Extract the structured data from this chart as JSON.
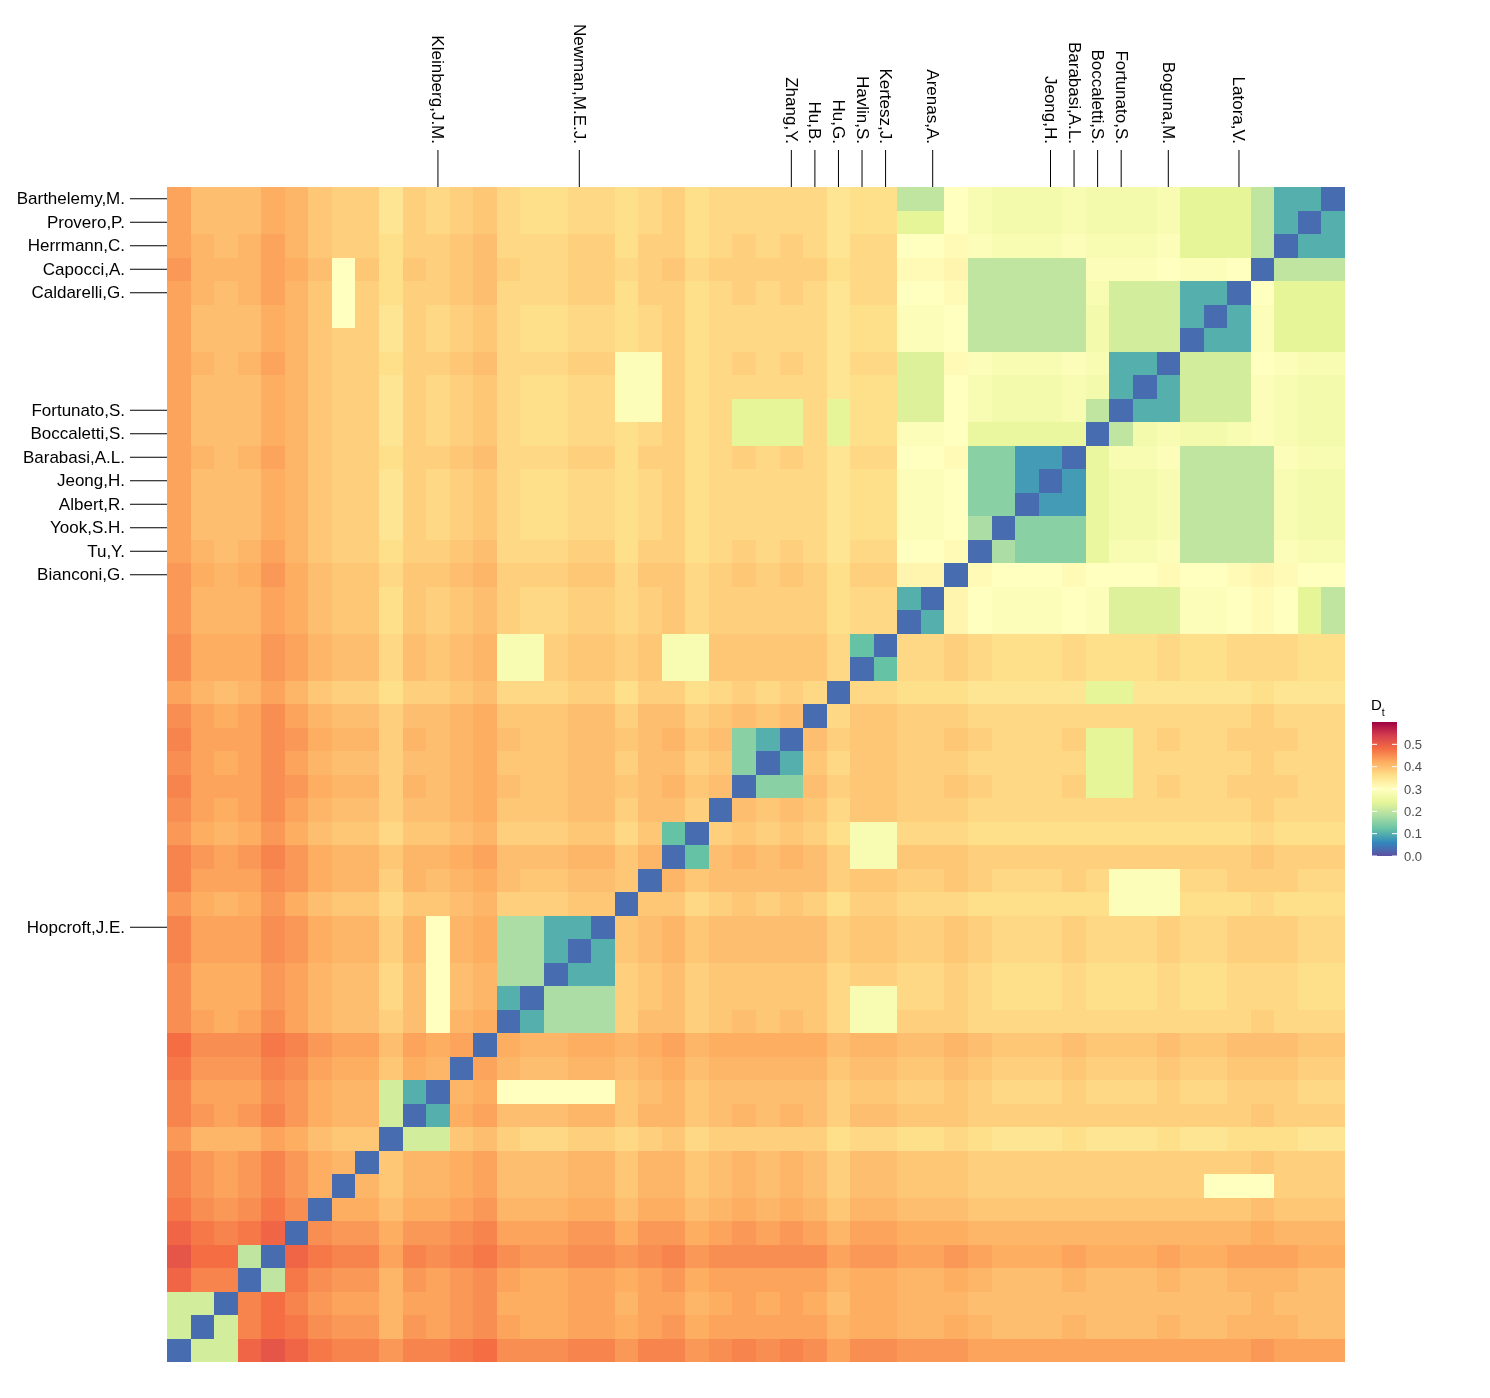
{
  "chart_data": {
    "type": "heatmap",
    "clabel": "D$_{t}$",
    "clim": [
      0,
      0.6
    ],
    "cticks": [
      {
        "value": 0,
        "label": "0.0"
      },
      0.1,
      0.2,
      0.3,
      0.4,
      0.5
    ],
    "categories": [
      null,
      null,
      null,
      null,
      null,
      null,
      null,
      null,
      null,
      null,
      null,
      "Kleinberg,J.M.",
      null,
      null,
      null,
      null,
      null,
      "Newman,M.E.J.",
      null,
      null,
      null,
      null,
      null,
      null,
      null,
      null,
      "Zhang,Y.",
      "Hu,B.",
      "Hu,G.",
      "Havlin,S.",
      "Kertesz,J.",
      null,
      "Arenas,A.",
      null,
      null,
      null,
      null,
      "Jeong,H.",
      "Barabasi,A.L.",
      "Boccaletti,S.",
      "Fortunato,S.",
      null,
      "Boguna,M.",
      null,
      null,
      "Latora,V.",
      null,
      null,
      null,
      null
    ],
    "y_categories": [
      "Barthelemy,M.",
      "Provero,P.",
      "Herrmann,C.",
      "Capocci,A.",
      "Caldarelli,G.",
      null,
      null,
      null,
      null,
      "Fortunato,S.",
      "Boccaletti,S.",
      "Barabasi,A.L.",
      "Jeong,H.",
      "Albert,R.",
      "Yook,S.H.",
      "Tu,Y.",
      "Bianconi,G.",
      null,
      null,
      null,
      null,
      null,
      null,
      null,
      null,
      null,
      null,
      null,
      null,
      null,
      null,
      "Hopcroft,J.E.",
      null,
      null,
      null,
      null,
      null,
      null,
      null,
      null,
      null,
      null,
      null,
      null,
      null,
      null,
      null,
      null,
      null,
      null
    ],
    "cells": [
      [
        0.43,
        0.4,
        0.4,
        0.4,
        0.42,
        0.41,
        0.39,
        0.38,
        0.38,
        0.35,
        0.38,
        0.37,
        0.38,
        0.39,
        0.37,
        0.36,
        0.36,
        0.37,
        0.37,
        0.36,
        0.37,
        0.38,
        0.36,
        0.37,
        0.37,
        0.37,
        0.37,
        0.37,
        0.35,
        0.36,
        0.36,
        0.2,
        0.2,
        0.3,
        0.28,
        0.27,
        0.27,
        0.27,
        0.28,
        0.27,
        0.27,
        0.27,
        0.28,
        0.24,
        0.24,
        0.24,
        0.2,
        0.1,
        0.1,
        0.03
      ],
      [
        0.43,
        0.4,
        0.4,
        0.4,
        0.42,
        0.41,
        0.39,
        0.38,
        0.38,
        0.35,
        0.38,
        0.37,
        0.38,
        0.39,
        0.37,
        0.36,
        0.36,
        0.37,
        0.37,
        0.36,
        0.37,
        0.38,
        0.36,
        0.37,
        0.37,
        0.37,
        0.37,
        0.37,
        0.35,
        0.36,
        0.36,
        0.24,
        0.24,
        0.3,
        0.28,
        0.27,
        0.27,
        0.27,
        0.28,
        0.27,
        0.27,
        0.27,
        0.28,
        0.24,
        0.24,
        0.24,
        0.2,
        0.1,
        0.03,
        0.1
      ],
      [
        0.43,
        0.41,
        0.4,
        0.41,
        0.43,
        0.41,
        0.39,
        0.38,
        0.38,
        0.36,
        0.38,
        0.38,
        0.39,
        0.4,
        0.37,
        0.37,
        0.37,
        0.38,
        0.38,
        0.36,
        0.38,
        0.38,
        0.36,
        0.37,
        0.38,
        0.37,
        0.38,
        0.37,
        0.35,
        0.37,
        0.37,
        0.3,
        0.3,
        0.31,
        0.29,
        0.28,
        0.28,
        0.28,
        0.29,
        0.28,
        0.28,
        0.28,
        0.29,
        0.24,
        0.24,
        0.24,
        0.2,
        0.03,
        0.1,
        0.1
      ],
      [
        0.44,
        0.41,
        0.41,
        0.41,
        0.43,
        0.42,
        0.4,
        0.3,
        0.39,
        0.36,
        0.39,
        0.38,
        0.39,
        0.4,
        0.38,
        0.37,
        0.37,
        0.38,
        0.38,
        0.37,
        0.38,
        0.39,
        0.37,
        0.38,
        0.38,
        0.38,
        0.38,
        0.38,
        0.36,
        0.37,
        0.37,
        0.31,
        0.31,
        0.32,
        0.2,
        0.2,
        0.2,
        0.2,
        0.2,
        0.29,
        0.29,
        0.29,
        0.3,
        0.29,
        0.29,
        0.3,
        0.03,
        0.2,
        0.2,
        0.2
      ],
      [
        0.43,
        0.41,
        0.4,
        0.41,
        0.43,
        0.41,
        0.39,
        0.3,
        0.38,
        0.36,
        0.38,
        0.38,
        0.39,
        0.4,
        0.37,
        0.37,
        0.37,
        0.38,
        0.38,
        0.36,
        0.38,
        0.38,
        0.36,
        0.37,
        0.38,
        0.37,
        0.38,
        0.37,
        0.35,
        0.37,
        0.37,
        0.3,
        0.3,
        0.31,
        0.2,
        0.2,
        0.2,
        0.2,
        0.2,
        0.28,
        0.22,
        0.22,
        0.22,
        0.1,
        0.1,
        0.03,
        0.3,
        0.24,
        0.24,
        0.24
      ],
      [
        0.43,
        0.4,
        0.4,
        0.4,
        0.42,
        0.41,
        0.39,
        0.3,
        0.38,
        0.35,
        0.38,
        0.37,
        0.38,
        0.39,
        0.37,
        0.36,
        0.36,
        0.37,
        0.37,
        0.36,
        0.37,
        0.38,
        0.36,
        0.37,
        0.37,
        0.37,
        0.37,
        0.37,
        0.35,
        0.36,
        0.36,
        0.29,
        0.29,
        0.3,
        0.2,
        0.2,
        0.2,
        0.2,
        0.2,
        0.27,
        0.22,
        0.22,
        0.22,
        0.1,
        0.03,
        0.1,
        0.29,
        0.24,
        0.24,
        0.24
      ],
      [
        0.43,
        0.4,
        0.4,
        0.4,
        0.42,
        0.41,
        0.39,
        0.38,
        0.38,
        0.35,
        0.38,
        0.37,
        0.38,
        0.39,
        0.37,
        0.36,
        0.36,
        0.37,
        0.37,
        0.36,
        0.37,
        0.38,
        0.36,
        0.37,
        0.37,
        0.37,
        0.37,
        0.37,
        0.35,
        0.36,
        0.36,
        0.29,
        0.29,
        0.3,
        0.2,
        0.2,
        0.2,
        0.2,
        0.2,
        0.27,
        0.22,
        0.22,
        0.22,
        0.03,
        0.1,
        0.1,
        0.29,
        0.24,
        0.24,
        0.24
      ],
      [
        0.43,
        0.41,
        0.4,
        0.41,
        0.43,
        0.41,
        0.39,
        0.38,
        0.38,
        0.36,
        0.38,
        0.38,
        0.39,
        0.4,
        0.37,
        0.37,
        0.37,
        0.38,
        0.38,
        0.29,
        0.29,
        0.38,
        0.36,
        0.37,
        0.38,
        0.37,
        0.38,
        0.37,
        0.35,
        0.37,
        0.37,
        0.23,
        0.23,
        0.31,
        0.29,
        0.28,
        0.28,
        0.28,
        0.29,
        0.28,
        0.1,
        0.1,
        0.03,
        0.22,
        0.22,
        0.22,
        0.3,
        0.29,
        0.28,
        0.28
      ],
      [
        0.43,
        0.4,
        0.4,
        0.4,
        0.42,
        0.41,
        0.39,
        0.38,
        0.38,
        0.35,
        0.38,
        0.37,
        0.38,
        0.39,
        0.37,
        0.36,
        0.36,
        0.37,
        0.37,
        0.29,
        0.29,
        0.38,
        0.36,
        0.37,
        0.37,
        0.37,
        0.37,
        0.37,
        0.35,
        0.36,
        0.36,
        0.23,
        0.23,
        0.3,
        0.28,
        0.27,
        0.27,
        0.27,
        0.28,
        0.27,
        0.1,
        0.03,
        0.1,
        0.22,
        0.22,
        0.22,
        0.29,
        0.28,
        0.27,
        0.27
      ],
      [
        0.43,
        0.4,
        0.4,
        0.4,
        0.42,
        0.41,
        0.39,
        0.38,
        0.38,
        0.35,
        0.38,
        0.37,
        0.38,
        0.39,
        0.37,
        0.36,
        0.36,
        0.37,
        0.37,
        0.29,
        0.29,
        0.38,
        0.36,
        0.37,
        0.24,
        0.24,
        0.24,
        0.37,
        0.24,
        0.36,
        0.36,
        0.23,
        0.23,
        0.3,
        0.28,
        0.27,
        0.27,
        0.27,
        0.28,
        0.2,
        0.03,
        0.1,
        0.1,
        0.22,
        0.22,
        0.22,
        0.29,
        0.28,
        0.27,
        0.27
      ],
      [
        0.43,
        0.4,
        0.4,
        0.4,
        0.42,
        0.41,
        0.39,
        0.38,
        0.38,
        0.35,
        0.38,
        0.37,
        0.38,
        0.39,
        0.37,
        0.36,
        0.36,
        0.37,
        0.37,
        0.36,
        0.37,
        0.38,
        0.36,
        0.37,
        0.24,
        0.24,
        0.24,
        0.37,
        0.24,
        0.36,
        0.36,
        0.29,
        0.29,
        0.3,
        0.25,
        0.25,
        0.25,
        0.25,
        0.25,
        0.03,
        0.2,
        0.27,
        0.28,
        0.27,
        0.27,
        0.28,
        0.29,
        0.28,
        0.27,
        0.27
      ],
      [
        0.43,
        0.41,
        0.4,
        0.41,
        0.43,
        0.41,
        0.39,
        0.38,
        0.38,
        0.36,
        0.38,
        0.38,
        0.39,
        0.4,
        0.37,
        0.37,
        0.37,
        0.38,
        0.38,
        0.36,
        0.38,
        0.38,
        0.36,
        0.37,
        0.38,
        0.37,
        0.38,
        0.37,
        0.35,
        0.37,
        0.37,
        0.3,
        0.3,
        0.31,
        0.15,
        0.15,
        0.08,
        0.08,
        0.03,
        0.25,
        0.28,
        0.28,
        0.29,
        0.2,
        0.2,
        0.2,
        0.2,
        0.29,
        0.28,
        0.28
      ],
      [
        0.43,
        0.4,
        0.4,
        0.4,
        0.42,
        0.41,
        0.39,
        0.38,
        0.38,
        0.35,
        0.38,
        0.37,
        0.38,
        0.39,
        0.37,
        0.36,
        0.36,
        0.37,
        0.37,
        0.36,
        0.37,
        0.38,
        0.36,
        0.37,
        0.37,
        0.37,
        0.37,
        0.37,
        0.35,
        0.36,
        0.36,
        0.29,
        0.29,
        0.3,
        0.15,
        0.15,
        0.08,
        0.03,
        0.08,
        0.25,
        0.27,
        0.27,
        0.28,
        0.2,
        0.2,
        0.2,
        0.2,
        0.28,
        0.27,
        0.27
      ],
      [
        0.43,
        0.4,
        0.4,
        0.4,
        0.42,
        0.41,
        0.39,
        0.38,
        0.38,
        0.35,
        0.38,
        0.37,
        0.38,
        0.39,
        0.37,
        0.36,
        0.36,
        0.37,
        0.37,
        0.36,
        0.37,
        0.38,
        0.36,
        0.37,
        0.37,
        0.37,
        0.37,
        0.37,
        0.35,
        0.36,
        0.36,
        0.29,
        0.29,
        0.3,
        0.15,
        0.15,
        0.03,
        0.08,
        0.08,
        0.25,
        0.27,
        0.27,
        0.28,
        0.2,
        0.2,
        0.2,
        0.2,
        0.28,
        0.27,
        0.27
      ],
      [
        0.43,
        0.4,
        0.4,
        0.4,
        0.42,
        0.41,
        0.39,
        0.38,
        0.38,
        0.35,
        0.38,
        0.37,
        0.38,
        0.39,
        0.37,
        0.36,
        0.36,
        0.37,
        0.37,
        0.36,
        0.37,
        0.38,
        0.36,
        0.37,
        0.37,
        0.37,
        0.37,
        0.37,
        0.35,
        0.36,
        0.36,
        0.29,
        0.29,
        0.3,
        0.18,
        0.03,
        0.15,
        0.15,
        0.15,
        0.25,
        0.27,
        0.27,
        0.28,
        0.2,
        0.2,
        0.2,
        0.2,
        0.28,
        0.27,
        0.27
      ],
      [
        0.43,
        0.41,
        0.4,
        0.41,
        0.43,
        0.41,
        0.39,
        0.38,
        0.38,
        0.36,
        0.38,
        0.38,
        0.39,
        0.4,
        0.37,
        0.37,
        0.37,
        0.38,
        0.38,
        0.36,
        0.38,
        0.38,
        0.36,
        0.37,
        0.38,
        0.37,
        0.38,
        0.37,
        0.35,
        0.37,
        0.37,
        0.3,
        0.3,
        0.31,
        0.03,
        0.18,
        0.15,
        0.15,
        0.15,
        0.25,
        0.28,
        0.28,
        0.29,
        0.2,
        0.2,
        0.2,
        0.2,
        0.29,
        0.28,
        0.28
      ],
      [
        0.44,
        0.42,
        0.41,
        0.42,
        0.44,
        0.42,
        0.4,
        0.39,
        0.39,
        0.37,
        0.39,
        0.39,
        0.4,
        0.41,
        0.38,
        0.38,
        0.38,
        0.39,
        0.39,
        0.37,
        0.39,
        0.39,
        0.37,
        0.38,
        0.39,
        0.38,
        0.39,
        0.38,
        0.36,
        0.38,
        0.38,
        0.32,
        0.32,
        0.03,
        0.31,
        0.3,
        0.3,
        0.3,
        0.31,
        0.3,
        0.3,
        0.3,
        0.31,
        0.3,
        0.3,
        0.31,
        0.32,
        0.31,
        0.3,
        0.3
      ],
      [
        0.44,
        0.41,
        0.41,
        0.41,
        0.43,
        0.42,
        0.4,
        0.39,
        0.39,
        0.36,
        0.39,
        0.38,
        0.39,
        0.4,
        0.38,
        0.37,
        0.37,
        0.38,
        0.38,
        0.37,
        0.38,
        0.39,
        0.37,
        0.38,
        0.38,
        0.38,
        0.38,
        0.38,
        0.36,
        0.37,
        0.37,
        0.1,
        0.03,
        0.32,
        0.3,
        0.29,
        0.29,
        0.29,
        0.3,
        0.29,
        0.23,
        0.23,
        0.23,
        0.29,
        0.29,
        0.3,
        0.31,
        0.3,
        0.24,
        0.2
      ],
      [
        0.44,
        0.41,
        0.41,
        0.41,
        0.43,
        0.42,
        0.4,
        0.39,
        0.39,
        0.36,
        0.39,
        0.38,
        0.39,
        0.4,
        0.38,
        0.37,
        0.37,
        0.38,
        0.38,
        0.37,
        0.38,
        0.39,
        0.37,
        0.38,
        0.38,
        0.38,
        0.38,
        0.38,
        0.36,
        0.37,
        0.37,
        0.03,
        0.1,
        0.32,
        0.3,
        0.29,
        0.29,
        0.29,
        0.3,
        0.29,
        0.23,
        0.23,
        0.23,
        0.29,
        0.29,
        0.3,
        0.31,
        0.3,
        0.24,
        0.2
      ],
      [
        0.45,
        0.42,
        0.42,
        0.42,
        0.44,
        0.43,
        0.41,
        0.4,
        0.4,
        0.37,
        0.4,
        0.39,
        0.4,
        0.41,
        0.28,
        0.28,
        0.38,
        0.39,
        0.39,
        0.38,
        0.39,
        0.28,
        0.28,
        0.39,
        0.39,
        0.39,
        0.39,
        0.39,
        0.37,
        0.12,
        0.03,
        0.37,
        0.37,
        0.38,
        0.37,
        0.36,
        0.36,
        0.36,
        0.37,
        0.36,
        0.36,
        0.36,
        0.37,
        0.36,
        0.36,
        0.37,
        0.37,
        0.37,
        0.36,
        0.36
      ],
      [
        0.45,
        0.42,
        0.42,
        0.42,
        0.44,
        0.43,
        0.41,
        0.4,
        0.4,
        0.37,
        0.4,
        0.39,
        0.4,
        0.41,
        0.28,
        0.28,
        0.38,
        0.39,
        0.39,
        0.38,
        0.39,
        0.28,
        0.28,
        0.39,
        0.39,
        0.39,
        0.39,
        0.39,
        0.37,
        0.03,
        0.12,
        0.37,
        0.37,
        0.38,
        0.37,
        0.36,
        0.36,
        0.36,
        0.37,
        0.36,
        0.36,
        0.36,
        0.37,
        0.36,
        0.36,
        0.37,
        0.37,
        0.37,
        0.36,
        0.36
      ],
      [
        0.43,
        0.41,
        0.4,
        0.41,
        0.43,
        0.41,
        0.39,
        0.38,
        0.38,
        0.36,
        0.38,
        0.38,
        0.39,
        0.4,
        0.37,
        0.37,
        0.37,
        0.38,
        0.38,
        0.36,
        0.38,
        0.38,
        0.36,
        0.37,
        0.38,
        0.37,
        0.38,
        0.37,
        0.03,
        0.37,
        0.37,
        0.36,
        0.36,
        0.36,
        0.35,
        0.35,
        0.35,
        0.35,
        0.35,
        0.24,
        0.24,
        0.35,
        0.35,
        0.35,
        0.35,
        0.35,
        0.36,
        0.35,
        0.35,
        0.35
      ],
      [
        0.45,
        0.43,
        0.42,
        0.43,
        0.45,
        0.43,
        0.41,
        0.4,
        0.4,
        0.38,
        0.4,
        0.4,
        0.41,
        0.42,
        0.39,
        0.39,
        0.39,
        0.4,
        0.4,
        0.38,
        0.4,
        0.4,
        0.38,
        0.39,
        0.4,
        0.39,
        0.4,
        0.03,
        0.37,
        0.39,
        0.39,
        0.38,
        0.38,
        0.38,
        0.37,
        0.37,
        0.37,
        0.37,
        0.37,
        0.37,
        0.37,
        0.37,
        0.37,
        0.37,
        0.37,
        0.37,
        0.38,
        0.37,
        0.37,
        0.37
      ],
      [
        0.46,
        0.43,
        0.43,
        0.43,
        0.45,
        0.44,
        0.42,
        0.41,
        0.41,
        0.38,
        0.41,
        0.4,
        0.41,
        0.42,
        0.4,
        0.39,
        0.39,
        0.4,
        0.4,
        0.39,
        0.4,
        0.41,
        0.39,
        0.4,
        0.15,
        0.1,
        0.03,
        0.4,
        0.38,
        0.39,
        0.39,
        0.38,
        0.38,
        0.39,
        0.38,
        0.37,
        0.37,
        0.37,
        0.38,
        0.24,
        0.24,
        0.37,
        0.38,
        0.37,
        0.37,
        0.38,
        0.38,
        0.38,
        0.37,
        0.37
      ],
      [
        0.45,
        0.43,
        0.42,
        0.43,
        0.45,
        0.43,
        0.41,
        0.4,
        0.4,
        0.38,
        0.4,
        0.4,
        0.41,
        0.42,
        0.39,
        0.39,
        0.39,
        0.4,
        0.4,
        0.38,
        0.4,
        0.4,
        0.38,
        0.39,
        0.15,
        0.03,
        0.1,
        0.39,
        0.37,
        0.39,
        0.39,
        0.38,
        0.38,
        0.38,
        0.37,
        0.37,
        0.37,
        0.37,
        0.37,
        0.24,
        0.24,
        0.37,
        0.37,
        0.37,
        0.37,
        0.37,
        0.38,
        0.37,
        0.37,
        0.37
      ],
      [
        0.46,
        0.43,
        0.43,
        0.43,
        0.45,
        0.44,
        0.42,
        0.41,
        0.41,
        0.38,
        0.41,
        0.4,
        0.41,
        0.42,
        0.4,
        0.39,
        0.39,
        0.4,
        0.4,
        0.39,
        0.4,
        0.41,
        0.39,
        0.4,
        0.03,
        0.15,
        0.15,
        0.4,
        0.38,
        0.39,
        0.39,
        0.38,
        0.38,
        0.39,
        0.38,
        0.37,
        0.37,
        0.37,
        0.38,
        0.24,
        0.24,
        0.37,
        0.38,
        0.37,
        0.37,
        0.38,
        0.38,
        0.38,
        0.37,
        0.37
      ],
      [
        0.45,
        0.43,
        0.42,
        0.43,
        0.45,
        0.43,
        0.41,
        0.4,
        0.4,
        0.38,
        0.4,
        0.4,
        0.41,
        0.42,
        0.39,
        0.39,
        0.39,
        0.4,
        0.4,
        0.38,
        0.4,
        0.4,
        0.38,
        0.03,
        0.4,
        0.39,
        0.4,
        0.39,
        0.37,
        0.39,
        0.39,
        0.38,
        0.38,
        0.38,
        0.37,
        0.37,
        0.37,
        0.37,
        0.37,
        0.37,
        0.37,
        0.37,
        0.37,
        0.37,
        0.37,
        0.37,
        0.38,
        0.37,
        0.37,
        0.37
      ],
      [
        0.44,
        0.42,
        0.41,
        0.42,
        0.44,
        0.42,
        0.4,
        0.39,
        0.39,
        0.37,
        0.39,
        0.39,
        0.4,
        0.41,
        0.38,
        0.38,
        0.38,
        0.39,
        0.39,
        0.37,
        0.39,
        0.12,
        0.03,
        0.38,
        0.39,
        0.38,
        0.39,
        0.38,
        0.36,
        0.28,
        0.28,
        0.37,
        0.37,
        0.37,
        0.36,
        0.36,
        0.36,
        0.36,
        0.36,
        0.36,
        0.36,
        0.36,
        0.36,
        0.36,
        0.36,
        0.36,
        0.37,
        0.36,
        0.36,
        0.36
      ],
      [
        0.46,
        0.44,
        0.43,
        0.44,
        0.46,
        0.44,
        0.42,
        0.41,
        0.41,
        0.39,
        0.41,
        0.41,
        0.42,
        0.43,
        0.4,
        0.4,
        0.4,
        0.41,
        0.41,
        0.39,
        0.41,
        0.03,
        0.12,
        0.4,
        0.41,
        0.4,
        0.41,
        0.4,
        0.38,
        0.28,
        0.28,
        0.39,
        0.39,
        0.39,
        0.38,
        0.38,
        0.38,
        0.38,
        0.38,
        0.38,
        0.38,
        0.38,
        0.38,
        0.38,
        0.38,
        0.38,
        0.39,
        0.38,
        0.38,
        0.38
      ],
      [
        0.46,
        0.43,
        0.43,
        0.43,
        0.45,
        0.44,
        0.42,
        0.41,
        0.41,
        0.38,
        0.41,
        0.4,
        0.41,
        0.42,
        0.4,
        0.39,
        0.39,
        0.4,
        0.4,
        0.39,
        0.03,
        0.41,
        0.39,
        0.4,
        0.4,
        0.4,
        0.4,
        0.4,
        0.38,
        0.39,
        0.39,
        0.38,
        0.38,
        0.39,
        0.38,
        0.37,
        0.37,
        0.37,
        0.38,
        0.37,
        0.29,
        0.29,
        0.29,
        0.37,
        0.37,
        0.38,
        0.38,
        0.38,
        0.37,
        0.37
      ],
      [
        0.44,
        0.42,
        0.41,
        0.42,
        0.44,
        0.42,
        0.4,
        0.39,
        0.39,
        0.37,
        0.39,
        0.39,
        0.4,
        0.41,
        0.38,
        0.38,
        0.38,
        0.39,
        0.39,
        0.03,
        0.39,
        0.39,
        0.37,
        0.38,
        0.39,
        0.38,
        0.39,
        0.38,
        0.36,
        0.38,
        0.38,
        0.37,
        0.37,
        0.37,
        0.36,
        0.36,
        0.36,
        0.36,
        0.36,
        0.36,
        0.29,
        0.29,
        0.29,
        0.36,
        0.36,
        0.36,
        0.37,
        0.36,
        0.36,
        0.36
      ],
      [
        0.46,
        0.43,
        0.43,
        0.43,
        0.45,
        0.44,
        0.42,
        0.41,
        0.41,
        0.38,
        0.41,
        0.3,
        0.41,
        0.42,
        0.18,
        0.18,
        0.1,
        0.1,
        0.03,
        0.39,
        0.4,
        0.41,
        0.39,
        0.4,
        0.4,
        0.4,
        0.4,
        0.4,
        0.38,
        0.39,
        0.39,
        0.38,
        0.38,
        0.39,
        0.38,
        0.37,
        0.37,
        0.37,
        0.38,
        0.37,
        0.37,
        0.37,
        0.38,
        0.37,
        0.37,
        0.38,
        0.38,
        0.38,
        0.37,
        0.37
      ],
      [
        0.46,
        0.43,
        0.43,
        0.43,
        0.45,
        0.44,
        0.42,
        0.41,
        0.41,
        0.38,
        0.41,
        0.3,
        0.41,
        0.42,
        0.18,
        0.18,
        0.1,
        0.03,
        0.1,
        0.39,
        0.4,
        0.41,
        0.39,
        0.4,
        0.4,
        0.4,
        0.4,
        0.4,
        0.38,
        0.39,
        0.39,
        0.38,
        0.38,
        0.39,
        0.38,
        0.37,
        0.37,
        0.37,
        0.38,
        0.37,
        0.37,
        0.37,
        0.38,
        0.37,
        0.37,
        0.38,
        0.38,
        0.38,
        0.37,
        0.37
      ],
      [
        0.45,
        0.42,
        0.42,
        0.42,
        0.44,
        0.43,
        0.41,
        0.4,
        0.4,
        0.37,
        0.4,
        0.3,
        0.4,
        0.41,
        0.18,
        0.18,
        0.03,
        0.1,
        0.1,
        0.38,
        0.39,
        0.4,
        0.38,
        0.39,
        0.39,
        0.39,
        0.39,
        0.39,
        0.37,
        0.38,
        0.38,
        0.37,
        0.37,
        0.38,
        0.37,
        0.36,
        0.36,
        0.36,
        0.37,
        0.36,
        0.36,
        0.36,
        0.37,
        0.36,
        0.36,
        0.37,
        0.37,
        0.37,
        0.36,
        0.36
      ],
      [
        0.45,
        0.42,
        0.42,
        0.42,
        0.44,
        0.43,
        0.41,
        0.4,
        0.4,
        0.37,
        0.4,
        0.3,
        0.4,
        0.41,
        0.1,
        0.03,
        0.18,
        0.18,
        0.18,
        0.38,
        0.39,
        0.4,
        0.38,
        0.39,
        0.39,
        0.39,
        0.39,
        0.39,
        0.37,
        0.28,
        0.28,
        0.37,
        0.37,
        0.38,
        0.37,
        0.36,
        0.36,
        0.36,
        0.37,
        0.36,
        0.36,
        0.36,
        0.37,
        0.36,
        0.36,
        0.37,
        0.37,
        0.37,
        0.36,
        0.36
      ],
      [
        0.45,
        0.43,
        0.42,
        0.43,
        0.45,
        0.43,
        0.41,
        0.4,
        0.4,
        0.38,
        0.4,
        0.3,
        0.41,
        0.42,
        0.03,
        0.1,
        0.18,
        0.18,
        0.18,
        0.38,
        0.4,
        0.4,
        0.38,
        0.39,
        0.4,
        0.39,
        0.4,
        0.39,
        0.37,
        0.28,
        0.28,
        0.38,
        0.38,
        0.38,
        0.37,
        0.37,
        0.37,
        0.37,
        0.37,
        0.37,
        0.37,
        0.37,
        0.37,
        0.37,
        0.37,
        0.37,
        0.38,
        0.37,
        0.37,
        0.37
      ],
      [
        0.48,
        0.45,
        0.45,
        0.45,
        0.47,
        0.46,
        0.44,
        0.43,
        0.43,
        0.4,
        0.43,
        0.42,
        0.43,
        0.03,
        0.42,
        0.41,
        0.41,
        0.42,
        0.42,
        0.41,
        0.42,
        0.43,
        0.41,
        0.42,
        0.42,
        0.42,
        0.42,
        0.42,
        0.4,
        0.41,
        0.41,
        0.4,
        0.4,
        0.41,
        0.4,
        0.39,
        0.39,
        0.39,
        0.4,
        0.39,
        0.39,
        0.39,
        0.4,
        0.39,
        0.39,
        0.4,
        0.4,
        0.4,
        0.39,
        0.39
      ],
      [
        0.47,
        0.44,
        0.44,
        0.44,
        0.46,
        0.45,
        0.43,
        0.42,
        0.42,
        0.39,
        0.42,
        0.41,
        0.03,
        0.43,
        0.41,
        0.4,
        0.4,
        0.41,
        0.41,
        0.4,
        0.41,
        0.42,
        0.4,
        0.41,
        0.41,
        0.41,
        0.41,
        0.41,
        0.39,
        0.4,
        0.4,
        0.39,
        0.39,
        0.4,
        0.39,
        0.38,
        0.38,
        0.38,
        0.39,
        0.38,
        0.38,
        0.38,
        0.39,
        0.38,
        0.38,
        0.39,
        0.39,
        0.39,
        0.38,
        0.38
      ],
      [
        0.46,
        0.43,
        0.43,
        0.43,
        0.45,
        0.44,
        0.42,
        0.41,
        0.41,
        0.22,
        0.1,
        0.03,
        0.41,
        0.42,
        0.3,
        0.3,
        0.3,
        0.3,
        0.3,
        0.39,
        0.4,
        0.41,
        0.39,
        0.4,
        0.4,
        0.4,
        0.4,
        0.4,
        0.38,
        0.39,
        0.39,
        0.38,
        0.38,
        0.39,
        0.38,
        0.37,
        0.37,
        0.37,
        0.38,
        0.37,
        0.37,
        0.37,
        0.38,
        0.37,
        0.37,
        0.38,
        0.38,
        0.38,
        0.37,
        0.37
      ],
      [
        0.46,
        0.44,
        0.43,
        0.44,
        0.46,
        0.44,
        0.42,
        0.41,
        0.41,
        0.22,
        0.03,
        0.1,
        0.42,
        0.43,
        0.4,
        0.4,
        0.4,
        0.41,
        0.41,
        0.39,
        0.41,
        0.41,
        0.39,
        0.4,
        0.41,
        0.4,
        0.41,
        0.4,
        0.38,
        0.4,
        0.4,
        0.39,
        0.39,
        0.39,
        0.38,
        0.38,
        0.38,
        0.38,
        0.38,
        0.38,
        0.38,
        0.38,
        0.38,
        0.38,
        0.38,
        0.38,
        0.39,
        0.38,
        0.38,
        0.38
      ],
      [
        0.44,
        0.41,
        0.41,
        0.41,
        0.43,
        0.42,
        0.4,
        0.39,
        0.39,
        0.03,
        0.22,
        0.22,
        0.39,
        0.4,
        0.38,
        0.37,
        0.37,
        0.38,
        0.38,
        0.37,
        0.38,
        0.39,
        0.37,
        0.38,
        0.38,
        0.38,
        0.38,
        0.38,
        0.36,
        0.37,
        0.37,
        0.36,
        0.36,
        0.37,
        0.36,
        0.35,
        0.35,
        0.35,
        0.36,
        0.35,
        0.35,
        0.35,
        0.36,
        0.35,
        0.35,
        0.36,
        0.36,
        0.36,
        0.35,
        0.35
      ],
      [
        0.46,
        0.44,
        0.43,
        0.44,
        0.46,
        0.44,
        0.42,
        0.41,
        0.03,
        0.39,
        0.41,
        0.41,
        0.42,
        0.43,
        0.4,
        0.4,
        0.4,
        0.41,
        0.41,
        0.39,
        0.41,
        0.41,
        0.39,
        0.4,
        0.41,
        0.4,
        0.41,
        0.4,
        0.38,
        0.4,
        0.4,
        0.39,
        0.39,
        0.39,
        0.38,
        0.38,
        0.38,
        0.38,
        0.38,
        0.38,
        0.38,
        0.38,
        0.38,
        0.38,
        0.38,
        0.38,
        0.39,
        0.38,
        0.38,
        0.38
      ],
      [
        0.46,
        0.44,
        0.43,
        0.44,
        0.46,
        0.44,
        0.42,
        0.03,
        0.41,
        0.39,
        0.41,
        0.41,
        0.42,
        0.43,
        0.4,
        0.4,
        0.4,
        0.41,
        0.41,
        0.39,
        0.41,
        0.41,
        0.39,
        0.4,
        0.41,
        0.4,
        0.41,
        0.4,
        0.38,
        0.4,
        0.4,
        0.39,
        0.39,
        0.39,
        0.38,
        0.38,
        0.38,
        0.38,
        0.38,
        0.38,
        0.38,
        0.38,
        0.38,
        0.38,
        0.3,
        0.3,
        0.3,
        0.38,
        0.38,
        0.38
      ],
      [
        0.47,
        0.45,
        0.44,
        0.45,
        0.47,
        0.45,
        0.03,
        0.42,
        0.42,
        0.4,
        0.42,
        0.42,
        0.43,
        0.44,
        0.41,
        0.41,
        0.41,
        0.42,
        0.42,
        0.4,
        0.42,
        0.42,
        0.4,
        0.41,
        0.42,
        0.41,
        0.42,
        0.41,
        0.39,
        0.41,
        0.41,
        0.4,
        0.4,
        0.4,
        0.39,
        0.39,
        0.39,
        0.39,
        0.39,
        0.39,
        0.39,
        0.39,
        0.39,
        0.39,
        0.39,
        0.39,
        0.4,
        0.39,
        0.39,
        0.39
      ],
      [
        0.49,
        0.47,
        0.46,
        0.47,
        0.49,
        0.03,
        0.45,
        0.44,
        0.44,
        0.42,
        0.44,
        0.44,
        0.45,
        0.46,
        0.43,
        0.43,
        0.43,
        0.44,
        0.44,
        0.42,
        0.44,
        0.44,
        0.42,
        0.43,
        0.44,
        0.43,
        0.44,
        0.43,
        0.41,
        0.43,
        0.43,
        0.42,
        0.42,
        0.42,
        0.41,
        0.41,
        0.41,
        0.41,
        0.41,
        0.41,
        0.41,
        0.41,
        0.41,
        0.41,
        0.41,
        0.41,
        0.42,
        0.41,
        0.41,
        0.41
      ],
      [
        0.51,
        0.48,
        0.48,
        0.2,
        0.03,
        0.49,
        0.47,
        0.46,
        0.46,
        0.43,
        0.46,
        0.45,
        0.46,
        0.47,
        0.45,
        0.44,
        0.44,
        0.45,
        0.45,
        0.44,
        0.45,
        0.46,
        0.44,
        0.45,
        0.45,
        0.45,
        0.45,
        0.45,
        0.43,
        0.44,
        0.44,
        0.43,
        0.43,
        0.44,
        0.43,
        0.42,
        0.42,
        0.42,
        0.43,
        0.42,
        0.42,
        0.42,
        0.43,
        0.42,
        0.42,
        0.43,
        0.43,
        0.43,
        0.42,
        0.42
      ],
      [
        0.49,
        0.46,
        0.46,
        0.03,
        0.2,
        0.47,
        0.45,
        0.44,
        0.44,
        0.41,
        0.44,
        0.43,
        0.44,
        0.45,
        0.43,
        0.42,
        0.42,
        0.43,
        0.43,
        0.42,
        0.43,
        0.44,
        0.42,
        0.43,
        0.43,
        0.43,
        0.43,
        0.43,
        0.41,
        0.42,
        0.42,
        0.41,
        0.41,
        0.42,
        0.41,
        0.4,
        0.4,
        0.4,
        0.41,
        0.4,
        0.4,
        0.4,
        0.41,
        0.4,
        0.4,
        0.41,
        0.41,
        0.41,
        0.4,
        0.4
      ],
      [
        0.22,
        0.22,
        0.03,
        0.46,
        0.48,
        0.46,
        0.44,
        0.43,
        0.43,
        0.41,
        0.43,
        0.43,
        0.44,
        0.45,
        0.42,
        0.42,
        0.42,
        0.43,
        0.43,
        0.41,
        0.43,
        0.43,
        0.41,
        0.42,
        0.43,
        0.42,
        0.43,
        0.42,
        0.4,
        0.42,
        0.42,
        0.41,
        0.41,
        0.41,
        0.4,
        0.4,
        0.4,
        0.4,
        0.4,
        0.4,
        0.4,
        0.4,
        0.4,
        0.4,
        0.4,
        0.4,
        0.41,
        0.4,
        0.4,
        0.4
      ],
      [
        0.22,
        0.03,
        0.22,
        0.46,
        0.48,
        0.47,
        0.45,
        0.44,
        0.44,
        0.41,
        0.44,
        0.43,
        0.44,
        0.45,
        0.43,
        0.42,
        0.42,
        0.43,
        0.43,
        0.42,
        0.43,
        0.44,
        0.42,
        0.43,
        0.43,
        0.43,
        0.43,
        0.43,
        0.41,
        0.42,
        0.42,
        0.41,
        0.41,
        0.42,
        0.41,
        0.4,
        0.4,
        0.4,
        0.41,
        0.4,
        0.4,
        0.4,
        0.41,
        0.4,
        0.4,
        0.41,
        0.41,
        0.41,
        0.4,
        0.4
      ],
      [
        0.03,
        0.22,
        0.22,
        0.49,
        0.51,
        0.49,
        0.47,
        0.46,
        0.46,
        0.44,
        0.46,
        0.46,
        0.47,
        0.48,
        0.45,
        0.45,
        0.45,
        0.46,
        0.46,
        0.44,
        0.46,
        0.46,
        0.44,
        0.45,
        0.46,
        0.45,
        0.46,
        0.45,
        0.43,
        0.45,
        0.45,
        0.44,
        0.44,
        0.44,
        0.43,
        0.43,
        0.43,
        0.43,
        0.43,
        0.43,
        0.43,
        0.43,
        0.43,
        0.43,
        0.43,
        0.43,
        0.44,
        0.43,
        0.43,
        0.43
      ]
    ]
  }
}
